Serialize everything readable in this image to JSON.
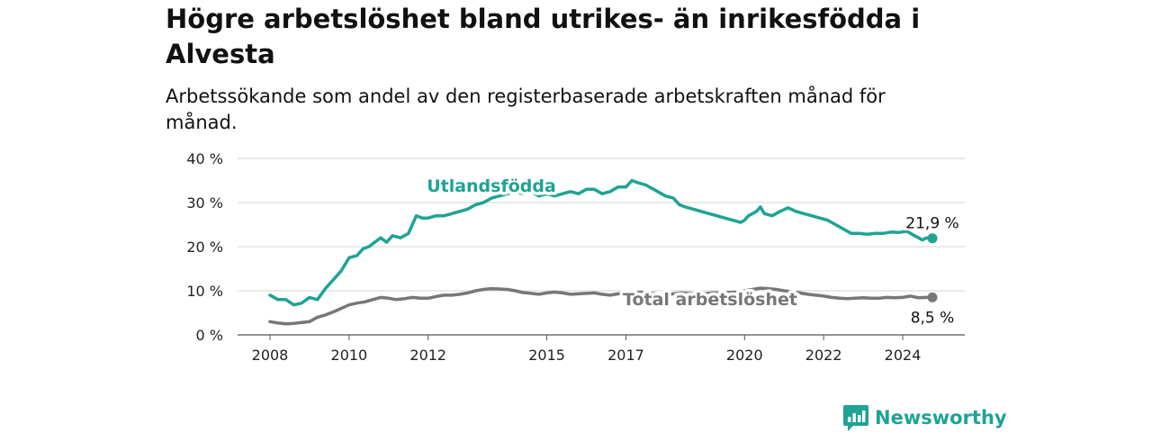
{
  "title": "Högre arbetslöshet bland utrikes- än inrikesfödda i Alvesta",
  "subtitle": "Arbetssökande som andel av den registerbaserade arbetskraften månad för månad.",
  "brand": {
    "name": "Newsworthy",
    "icon": "newsworthy-logo-icon",
    "color": "#1fa394"
  },
  "chart_data": {
    "type": "line",
    "xlim": [
      2008.0,
      2024.75
    ],
    "ylim": [
      0,
      40
    ],
    "y_ticks": [
      0,
      10,
      20,
      30,
      40
    ],
    "y_tick_labels": [
      "0 %",
      "10 %",
      "20 %",
      "30 %",
      "40 %"
    ],
    "x_ticks": [
      2008,
      2010,
      2012,
      2015,
      2017,
      2020,
      2022,
      2024
    ],
    "x_tick_labels": [
      "2008",
      "2010",
      "2012",
      "2015",
      "2017",
      "2020",
      "2022",
      "2024"
    ],
    "grid": "horizontal",
    "series": [
      {
        "name": "Utlandsfödda",
        "color": "#1fa394",
        "end_label": "21,9 %",
        "points": [
          [
            2008.0,
            9.0
          ],
          [
            2008.2,
            8.0
          ],
          [
            2008.4,
            8.0
          ],
          [
            2008.6,
            6.8
          ],
          [
            2008.8,
            7.2
          ],
          [
            2009.0,
            8.5
          ],
          [
            2009.2,
            8.0
          ],
          [
            2009.4,
            10.5
          ],
          [
            2009.6,
            12.5
          ],
          [
            2009.8,
            14.5
          ],
          [
            2010.0,
            17.5
          ],
          [
            2010.2,
            18.0
          ],
          [
            2010.35,
            19.5
          ],
          [
            2010.5,
            20.0
          ],
          [
            2010.65,
            21.0
          ],
          [
            2010.8,
            22.0
          ],
          [
            2010.95,
            21.0
          ],
          [
            2011.1,
            22.5
          ],
          [
            2011.3,
            22.0
          ],
          [
            2011.5,
            23.0
          ],
          [
            2011.7,
            27.0
          ],
          [
            2011.85,
            26.5
          ],
          [
            2012.0,
            26.5
          ],
          [
            2012.2,
            27.0
          ],
          [
            2012.4,
            27.0
          ],
          [
            2012.6,
            27.5
          ],
          [
            2012.8,
            28.0
          ],
          [
            2013.0,
            28.5
          ],
          [
            2013.2,
            29.5
          ],
          [
            2013.4,
            30.0
          ],
          [
            2013.6,
            31.0
          ],
          [
            2013.8,
            31.5
          ],
          [
            2014.0,
            32.0
          ],
          [
            2014.2,
            32.5
          ],
          [
            2014.4,
            32.0
          ],
          [
            2014.6,
            32.5
          ],
          [
            2014.8,
            31.5
          ],
          [
            2015.0,
            32.0
          ],
          [
            2015.2,
            31.5
          ],
          [
            2015.4,
            32.0
          ],
          [
            2015.6,
            32.5
          ],
          [
            2015.8,
            32.0
          ],
          [
            2016.0,
            33.0
          ],
          [
            2016.2,
            33.0
          ],
          [
            2016.4,
            32.0
          ],
          [
            2016.6,
            32.5
          ],
          [
            2016.8,
            33.5
          ],
          [
            2017.0,
            33.5
          ],
          [
            2017.15,
            35.0
          ],
          [
            2017.3,
            34.5
          ],
          [
            2017.5,
            34.0
          ],
          [
            2017.7,
            33.0
          ],
          [
            2017.9,
            32.0
          ],
          [
            2018.0,
            31.5
          ],
          [
            2018.2,
            31.0
          ],
          [
            2018.35,
            29.5
          ],
          [
            2018.5,
            29.0
          ],
          [
            2018.7,
            28.5
          ],
          [
            2018.9,
            28.0
          ],
          [
            2019.1,
            27.5
          ],
          [
            2019.3,
            27.0
          ],
          [
            2019.5,
            26.5
          ],
          [
            2019.7,
            26.0
          ],
          [
            2019.9,
            25.5
          ],
          [
            2020.0,
            26.0
          ],
          [
            2020.1,
            27.0
          ],
          [
            2020.2,
            27.5
          ],
          [
            2020.3,
            28.0
          ],
          [
            2020.4,
            29.0
          ],
          [
            2020.5,
            27.5
          ],
          [
            2020.7,
            27.0
          ],
          [
            2020.9,
            28.0
          ],
          [
            2021.1,
            28.8
          ],
          [
            2021.3,
            28.0
          ],
          [
            2021.5,
            27.5
          ],
          [
            2021.7,
            27.0
          ],
          [
            2021.9,
            26.5
          ],
          [
            2022.1,
            26.0
          ],
          [
            2022.3,
            25.0
          ],
          [
            2022.5,
            24.0
          ],
          [
            2022.7,
            23.0
          ],
          [
            2022.9,
            23.0
          ],
          [
            2023.1,
            22.8
          ],
          [
            2023.3,
            23.0
          ],
          [
            2023.5,
            23.0
          ],
          [
            2023.7,
            23.3
          ],
          [
            2023.9,
            23.2
          ],
          [
            2024.1,
            23.5
          ],
          [
            2024.2,
            23.0
          ],
          [
            2024.3,
            22.5
          ],
          [
            2024.4,
            22.0
          ],
          [
            2024.5,
            21.5
          ],
          [
            2024.6,
            22.0
          ],
          [
            2024.75,
            21.9
          ]
        ]
      },
      {
        "name": "Total arbetslöshet",
        "color": "#777777",
        "end_label": "8,5 %",
        "points": [
          [
            2008.0,
            3.0
          ],
          [
            2008.2,
            2.7
          ],
          [
            2008.4,
            2.5
          ],
          [
            2008.6,
            2.6
          ],
          [
            2008.8,
            2.8
          ],
          [
            2009.0,
            3.0
          ],
          [
            2009.2,
            4.0
          ],
          [
            2009.4,
            4.5
          ],
          [
            2009.6,
            5.2
          ],
          [
            2009.8,
            6.0
          ],
          [
            2010.0,
            6.8
          ],
          [
            2010.2,
            7.2
          ],
          [
            2010.4,
            7.5
          ],
          [
            2010.6,
            8.0
          ],
          [
            2010.8,
            8.5
          ],
          [
            2011.0,
            8.3
          ],
          [
            2011.2,
            8.0
          ],
          [
            2011.4,
            8.2
          ],
          [
            2011.6,
            8.5
          ],
          [
            2011.8,
            8.3
          ],
          [
            2012.0,
            8.3
          ],
          [
            2012.2,
            8.7
          ],
          [
            2012.4,
            9.0
          ],
          [
            2012.6,
            9.0
          ],
          [
            2012.8,
            9.2
          ],
          [
            2013.0,
            9.5
          ],
          [
            2013.2,
            10.0
          ],
          [
            2013.4,
            10.3
          ],
          [
            2013.6,
            10.5
          ],
          [
            2013.8,
            10.4
          ],
          [
            2014.0,
            10.3
          ],
          [
            2014.2,
            10.0
          ],
          [
            2014.4,
            9.6
          ],
          [
            2014.6,
            9.4
          ],
          [
            2014.8,
            9.2
          ],
          [
            2015.0,
            9.5
          ],
          [
            2015.2,
            9.7
          ],
          [
            2015.4,
            9.5
          ],
          [
            2015.6,
            9.2
          ],
          [
            2015.8,
            9.3
          ],
          [
            2016.0,
            9.4
          ],
          [
            2016.2,
            9.5
          ],
          [
            2016.4,
            9.2
          ],
          [
            2016.6,
            9.0
          ],
          [
            2016.8,
            9.3
          ],
          [
            2017.0,
            9.3
          ],
          [
            2017.2,
            9.5
          ],
          [
            2017.4,
            9.7
          ],
          [
            2017.6,
            9.5
          ],
          [
            2017.8,
            9.2
          ],
          [
            2018.0,
            9.0
          ],
          [
            2018.2,
            9.3
          ],
          [
            2018.4,
            9.5
          ],
          [
            2018.6,
            9.4
          ],
          [
            2018.8,
            9.2
          ],
          [
            2019.0,
            9.3
          ],
          [
            2019.2,
            9.5
          ],
          [
            2019.4,
            9.5
          ],
          [
            2019.6,
            9.6
          ],
          [
            2019.8,
            9.7
          ],
          [
            2020.0,
            10.0
          ],
          [
            2020.2,
            10.3
          ],
          [
            2020.4,
            10.6
          ],
          [
            2020.6,
            10.5
          ],
          [
            2020.8,
            10.3
          ],
          [
            2021.0,
            10.0
          ],
          [
            2021.2,
            9.8
          ],
          [
            2021.4,
            9.5
          ],
          [
            2021.6,
            9.2
          ],
          [
            2021.8,
            9.0
          ],
          [
            2022.0,
            8.8
          ],
          [
            2022.2,
            8.5
          ],
          [
            2022.4,
            8.3
          ],
          [
            2022.6,
            8.2
          ],
          [
            2022.8,
            8.3
          ],
          [
            2023.0,
            8.4
          ],
          [
            2023.2,
            8.3
          ],
          [
            2023.4,
            8.3
          ],
          [
            2023.6,
            8.5
          ],
          [
            2023.8,
            8.4
          ],
          [
            2024.0,
            8.5
          ],
          [
            2024.2,
            8.8
          ],
          [
            2024.4,
            8.4
          ],
          [
            2024.6,
            8.5
          ],
          [
            2024.75,
            8.5
          ]
        ]
      }
    ]
  }
}
